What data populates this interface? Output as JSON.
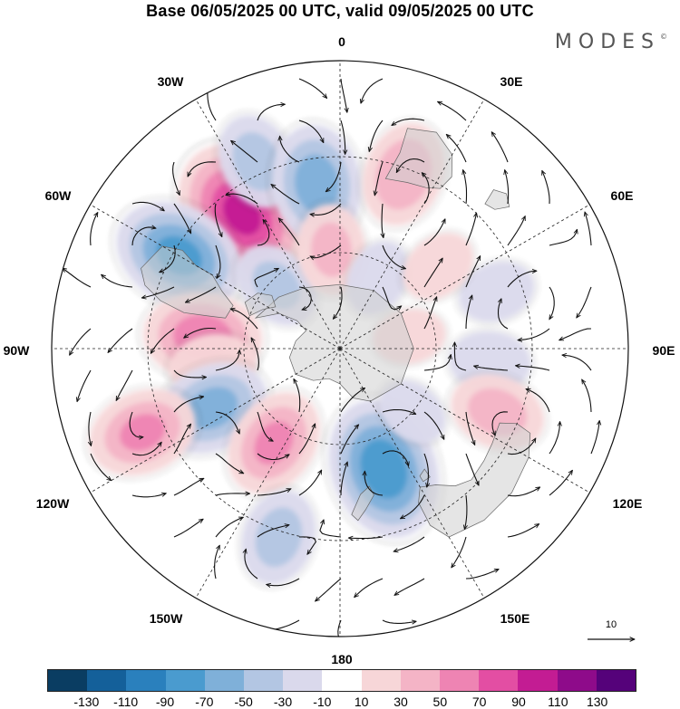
{
  "title": "Base 06/05/2025 00 UTC, valid 09/05/2025 00 UTC",
  "brand": "MODES",
  "brand_mark": "©",
  "labels": {
    "lon_0": "0",
    "lon_30e": "30E",
    "lon_60e": "60E",
    "lon_90e": "90E",
    "lon_120e": "120E",
    "lon_150e": "150E",
    "lon_180": "180",
    "lon_150w": "150W",
    "lon_120w": "120W",
    "lon_90w": "90W",
    "lon_60w": "60W",
    "lon_30w": "30W"
  },
  "reference_vector": "10",
  "colorbar": {
    "colors": [
      "#0a3d62",
      "#14609a",
      "#2a80bd",
      "#4a9bcf",
      "#7fb0d9",
      "#b3c6e3",
      "#dad9ec",
      "#ffffff",
      "#f7d6d8",
      "#f4b4c6",
      "#ee84b3",
      "#e34ea3",
      "#c31c93",
      "#8e0b8a",
      "#55027a"
    ],
    "ticks": [
      "-130",
      "-110",
      "-90",
      "-70",
      "-50",
      "-30",
      "-10",
      "10",
      "30",
      "50",
      "70",
      "90",
      "110",
      "130"
    ]
  },
  "anomaly_centers": [
    {
      "lon_deg": -36,
      "colat_deg": 52,
      "sign": "positive",
      "value": 105
    },
    {
      "lon_deg": -24,
      "colat_deg": 64,
      "sign": "negative",
      "value": -45
    },
    {
      "lon_deg": -8,
      "colat_deg": 52,
      "sign": "negative",
      "value": -70
    },
    {
      "lon_deg": 20,
      "colat_deg": 58,
      "sign": "positive",
      "value": 55
    },
    {
      "lon_deg": -60,
      "colat_deg": 58,
      "sign": "negative",
      "value": -85
    },
    {
      "lon_deg": -45,
      "colat_deg": 28,
      "sign": "negative",
      "value": -40
    },
    {
      "lon_deg": -5,
      "colat_deg": 31,
      "sign": "positive",
      "value": 40
    },
    {
      "lon_deg": 28,
      "colat_deg": 25,
      "sign": "negative",
      "value": -25
    },
    {
      "lon_deg": -85,
      "colat_deg": 43,
      "sign": "positive",
      "value": 70
    },
    {
      "lon_deg": -98,
      "colat_deg": 40,
      "sign": "positive",
      "value": 35
    },
    {
      "lon_deg": -115,
      "colat_deg": 44,
      "sign": "negative",
      "value": -65
    },
    {
      "lon_deg": -145,
      "colat_deg": 36,
      "sign": "positive",
      "value": 60
    },
    {
      "lon_deg": -113,
      "colat_deg": 67,
      "sign": "positive",
      "value": 60
    },
    {
      "lon_deg": -162,
      "colat_deg": 62,
      "sign": "negative",
      "value": -45
    },
    {
      "lon_deg": 160,
      "colat_deg": 40,
      "sign": "negative",
      "value": -95
    },
    {
      "lon_deg": 131,
      "colat_deg": 30,
      "sign": "negative",
      "value": -20
    },
    {
      "lon_deg": 95,
      "colat_deg": 47,
      "sign": "negative",
      "value": -30
    },
    {
      "lon_deg": 112,
      "colat_deg": 53,
      "sign": "positive",
      "value": 45
    },
    {
      "lon_deg": 70,
      "colat_deg": 52,
      "sign": "negative",
      "value": -25
    },
    {
      "lon_deg": 50,
      "colat_deg": 40,
      "sign": "positive",
      "value": 25
    },
    {
      "lon_deg": 80,
      "colat_deg": 22,
      "sign": "positive",
      "value": 20
    }
  ]
}
